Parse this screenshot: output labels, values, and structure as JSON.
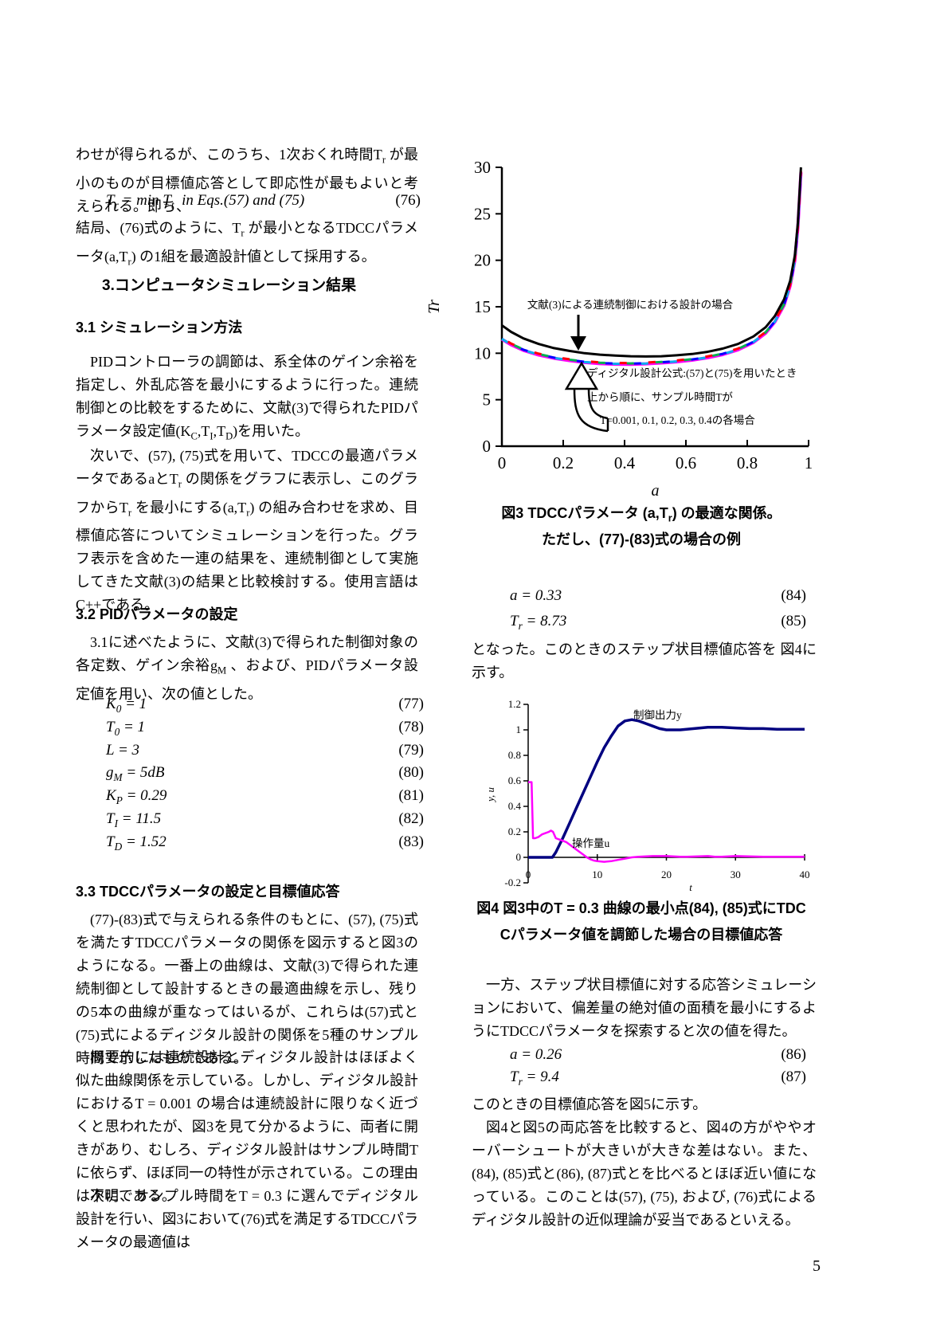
{
  "page": {
    "number": "5"
  },
  "left": {
    "p1": "わせが得られるが、このうち、1次おくれ時間T_{r} が最小のものが目標値応答として即応性が最もよいと考えられる。即ち、",
    "eq76": {
      "expr": "T_{r} = min T_{t}  in Eqs.(57) and (75)",
      "num": "(76)"
    },
    "p2": "結局、(76)式のように、T_{r} が最小となるTDCCパラメータ(a,T_{r}) の1組を最適設計値として採用する。",
    "h3": "3.コンピュータシミュレーション結果",
    "h31": "3.1 シミュレーション方法",
    "p3": "PIDコントローラの調節は、系全体のゲイン余裕を指定し、外乱応答を最小にするように行った。連続制御との比較をするために、文献(3)で得られたPIDパラメータ設定値(K_{C},T_{I},T_{D})を用いた。",
    "p4": "次いで、(57), (75)式を用いて、TDCCの最適パラメータであるaとT_{r} の関係をグラフに表示し、このグラフからT_{r} を最小にする(a,T_{r}) の組み合わせを求め、目標値応答についてシミュレーションを行った。グラフ表示を含めた一連の結果を、連続制御として実施してきた文献(3)の結果と比較検討する。使用言語はC++である。",
    "h32": "3.2 PIDパラメータの設定",
    "p5": "3.1に述べたように、文献(3)で得られた制御対象の各定数、ゲイン余裕g_{M} 、および、PIDパラメータ設定値を用い、次の値とした。",
    "equations": [
      {
        "expr": "K_{0} = 1",
        "num": "(77)"
      },
      {
        "expr": "T_{0} = 1",
        "num": "(78)"
      },
      {
        "expr": "L = 3",
        "num": "(79)"
      },
      {
        "expr": "g_{M} = 5dB",
        "num": "(80)"
      },
      {
        "expr": "K_{P} = 0.29",
        "num": "(81)"
      },
      {
        "expr": "T_{I} = 11.5",
        "num": "(82)"
      },
      {
        "expr": "T_{D} = 1.52",
        "num": "(83)"
      }
    ],
    "h33": "3.3 TDCCパラメータの設定と目標値応答",
    "p6": "(77)-(83)式で与えられる条件のもとに、(57), (75)式を満たすTDCCパラメータの関係を図示すると図3のようになる。一番上の曲線は、文献(3)で得られた連続制御として設計するときの最適曲線を示し、残りの5本の曲線が重なってはいるが、これらは(57)式と(75)式によるディジタル設計の関係を5種のサンプル時間で示したものである。",
    "p7": "概要的には連続設計とディジタル設計はほぼよく似た曲線関係を示している。しかし、ディジタル設計におけるT = 0.001 の場合は連続設計に限りなく近づくと思われたが、図3を見て分かるように、両者に開きがあり、むしろ、ディジタル設計はサンプル時間T に依らず、ほぼ同一の特性が示されている。この理由は不明である。",
    "p8": "次に、サンプル時間をT = 0.3 に選んでディジタル設計を行い、図3において(76)式を満足するTDCCパラメータの最適値は"
  },
  "right": {
    "fig3_caption_1": "図3 TDCCパラメータ (a,T_{r}) の最適な関係。",
    "fig3_caption_2": "ただし、(77)-(83)式の場合の例",
    "eq84": {
      "expr": "a = 0.33",
      "num": "(84)"
    },
    "eq85": {
      "expr": "T_{r} = 8.73",
      "num": "(85)"
    },
    "p_after_eq85": "となった。このときのステップ状目標値応答を 図4に示す。",
    "fig4_caption_1": "図4 図3中のT = 0.3 曲線の最小点(84), (85)式にTDC",
    "fig4_caption_2": "Cパラメータ値を調節した場合の目標値応答",
    "p9": "一方、ステップ状目標値に対する応答シミュレーションにおいて、偏差量の絶対値の面積を最小にするようにTDCCパラメータを探索すると次の値を得た。",
    "eq86": {
      "expr": "a = 0.26",
      "num": "(86)"
    },
    "eq87": {
      "expr": "T_{r} = 9.4",
      "num": "(87)"
    },
    "p10": "このときの目標値応答を図5に示す。",
    "p11": "図4と図5の両応答を比較すると、図4の方がややオーバーシュートが大きいが大きな差はない。また、(84), (85)式と(86), (87)式とを比べるとほぼ近い値になっている。このことは(57), (75), および, (76)式によるディジタル設計の近似理論が妥当であるといえる。"
  },
  "chart_data": [
    {
      "id": "fig3",
      "type": "line",
      "title": "",
      "xlabel": "a",
      "ylabel": "Tr",
      "xlim": [
        0,
        1
      ],
      "ylim": [
        0,
        30
      ],
      "xticks": [
        0,
        0.2,
        0.4,
        0.6,
        0.8,
        1
      ],
      "yticks": [
        0,
        5,
        10,
        15,
        20,
        25,
        30
      ],
      "grid": false,
      "legend": "none",
      "annotations": [
        "文献(3)による連続制御における設計の場合",
        "ディジタル設計公式:(57)と(75)を用いたとき",
        "上から順に、サンプル時間Tが",
        "T=0.001, 0.1, 0.2, 0.3, 0.4の各場合"
      ],
      "digital_base": {
        "x": [
          0,
          0.03,
          0.07,
          0.12,
          0.17,
          0.22,
          0.27,
          0.32,
          0.37,
          0.42,
          0.47,
          0.52,
          0.57,
          0.62,
          0.67,
          0.72,
          0.77,
          0.82,
          0.86,
          0.89,
          0.92,
          0.94,
          0.955,
          0.965,
          0.975
        ],
        "y": [
          11.55,
          10.95,
          10.35,
          9.85,
          9.5,
          9.25,
          9.05,
          8.92,
          8.86,
          8.85,
          8.9,
          9.0,
          9.12,
          9.3,
          9.55,
          9.9,
          10.4,
          11.2,
          12.2,
          13.4,
          15.2,
          17.3,
          20.0,
          23.5,
          29.5
        ]
      },
      "series": [
        {
          "name": "ディジタル設計 T=0.4",
          "color": "#ff00ff",
          "width": 4,
          "base": "digital",
          "offset": -0.04
        },
        {
          "name": "ディジタル設計 T=0.3",
          "color": "#00b0f0",
          "width": 3,
          "dash": "9 27",
          "dashoffset": 0,
          "base": "digital",
          "offset": 0
        },
        {
          "name": "ディジタル設計 T=0.2",
          "color": "#0000ff",
          "width": 3,
          "dash": "9 27",
          "dashoffset": 9,
          "base": "digital",
          "offset": 0.03
        },
        {
          "name": "ディジタル設計 T=0.1",
          "color": "#00b050",
          "width": 3,
          "dash": "9 27",
          "dashoffset": 18,
          "base": "digital",
          "offset": 0.06
        },
        {
          "name": "ディジタル設計 T=0.001",
          "color": "#ff0000",
          "width": 3,
          "dash": "9 27",
          "dashoffset": 27,
          "base": "digital",
          "offset": 0.1
        },
        {
          "name": "連続制御設計(文献(3))",
          "color": "#000000",
          "width": 3,
          "x": [
            0,
            0.03,
            0.07,
            0.12,
            0.17,
            0.22,
            0.27,
            0.32,
            0.37,
            0.42,
            0.47,
            0.52,
            0.57,
            0.62,
            0.67,
            0.72,
            0.77,
            0.82,
            0.86,
            0.89,
            0.92,
            0.94,
            0.955,
            0.965,
            0.975
          ],
          "y": [
            13.0,
            12.3,
            11.6,
            11.0,
            10.55,
            10.25,
            10.0,
            9.85,
            9.75,
            9.68,
            9.65,
            9.68,
            9.78,
            9.92,
            10.15,
            10.5,
            11.0,
            11.8,
            12.8,
            14.0,
            15.8,
            17.8,
            20.5,
            24.0,
            30.0
          ]
        }
      ]
    },
    {
      "id": "fig4",
      "type": "line",
      "title": "",
      "xlabel": "t",
      "ylabel": "y, u",
      "xlim": [
        0,
        40
      ],
      "ylim": [
        -0.2,
        1.2
      ],
      "xticks": [
        0,
        10,
        20,
        30,
        40
      ],
      "yticks": [
        -0.2,
        0,
        0.2,
        0.4,
        0.6,
        0.8,
        1,
        1.2
      ],
      "grid": false,
      "legend": "none",
      "annotations": [
        "制御出力y",
        "操作量u"
      ],
      "series": [
        {
          "name": "制御出力y",
          "color": "#000080",
          "width": 3.5,
          "x": [
            0,
            3.5,
            4,
            5,
            6,
            7,
            8,
            9,
            10,
            11,
            12,
            13,
            14,
            15,
            16,
            17,
            18,
            19,
            20,
            21,
            22,
            24,
            26,
            27,
            28,
            30,
            32,
            34,
            36,
            38,
            40
          ],
          "y": [
            0,
            0,
            0.04,
            0.15,
            0.27,
            0.39,
            0.51,
            0.63,
            0.75,
            0.86,
            0.95,
            1.03,
            1.07,
            1.08,
            1.07,
            1.05,
            1.03,
            1.01,
            1.0,
            1.0,
            1.0,
            1.01,
            1.02,
            1.02,
            1.02,
            1.015,
            1.01,
            1.01,
            1.005,
            1.005,
            1.005
          ]
        },
        {
          "name": "操作量u",
          "color": "#ff00ff",
          "width": 2.5,
          "x": [
            0,
            0.2,
            0.5,
            0.7,
            1,
            1.5,
            2,
            2.5,
            3,
            3.3,
            3.6,
            4,
            4.5,
            5,
            5.5,
            6,
            6.5,
            7,
            7.5,
            8,
            8.5,
            9,
            9.5,
            10,
            11,
            12,
            13,
            14,
            15,
            16,
            18,
            20,
            22,
            23,
            26,
            27,
            28,
            30,
            34,
            38,
            40
          ],
          "y": [
            0.59,
            0.59,
            0.59,
            0.15,
            0.15,
            0.16,
            0.18,
            0.19,
            0.2,
            0.21,
            0.2,
            0.15,
            0.14,
            0.13,
            0.12,
            0.1,
            0.08,
            0.06,
            0.04,
            0.02,
            0.0,
            -0.015,
            -0.025,
            -0.03,
            -0.035,
            -0.03,
            -0.02,
            -0.01,
            0.0,
            0.005,
            0.01,
            0.01,
            0.005,
            0.005,
            0.01,
            0.005,
            0.005,
            0.01,
            0.005,
            0.005,
            0.005
          ]
        }
      ]
    }
  ]
}
